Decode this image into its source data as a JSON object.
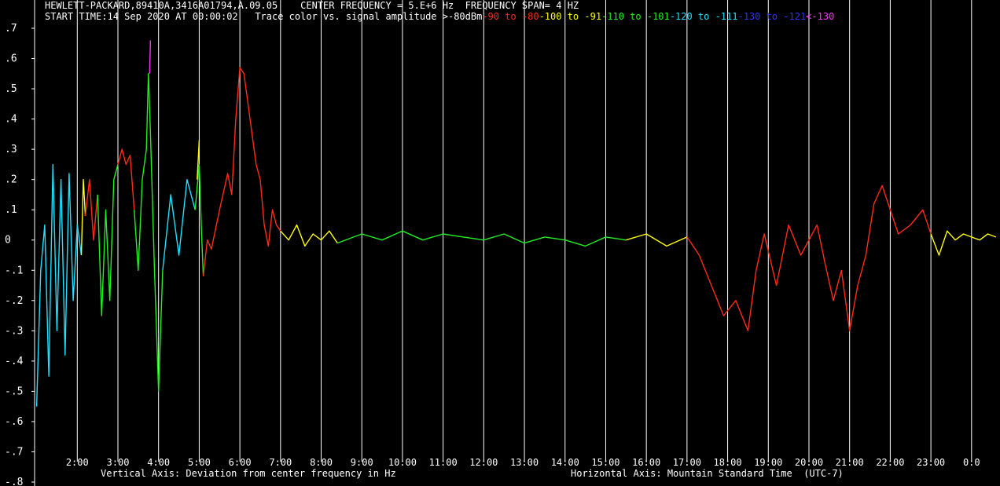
{
  "header": {
    "instrument": "HEWLETT-PACKARD,89410A,3416A01794,A.09.05",
    "center_frequency": "CENTER FREQUENCY = 5.E+6 Hz",
    "frequency_span": "FREQUENCY SPAN= 4 HZ",
    "start_time": "START TIME:14 Sep 2020 AT 00:00:02",
    "trace_color_label": "Trace color vs. signal amplitude"
  },
  "legend": [
    {
      "text": ">-80dBm",
      "color": "#ffffff"
    },
    {
      "text": "-90 to -80",
      "color": "#ff2a1a"
    },
    {
      "text": "-100 to -91",
      "color": "#ffff00"
    },
    {
      "text": "-110 to -101",
      "color": "#22ee22"
    },
    {
      "text": "-120 to -111",
      "color": "#20e0ff"
    },
    {
      "text": "-130 to -121",
      "color": "#3030ff"
    },
    {
      "text": "<-130",
      "color": "#ff30ff"
    }
  ],
  "colors": {
    "background": "#000000",
    "axis": "#ffffff",
    "grid": "#ffffff",
    "red": "#ff2a1a",
    "yellow": "#ffff00",
    "green": "#22ee22",
    "cyan": "#20e0ff",
    "blue": "#3030ff",
    "magenta": "#ff30ff"
  },
  "chart_data": {
    "type": "line",
    "xlabel": "Horizontal Axis: Mountain Standard Time  (UTC-7)",
    "ylabel": "Vertical Axis: Deviation from center frequency in Hz",
    "x_unit": "hours",
    "xlim": [
      0.95,
      24.7
    ],
    "ylim": [
      -0.8,
      0.7
    ],
    "x_ticks": [
      2,
      3,
      4,
      5,
      6,
      7,
      8,
      9,
      10,
      11,
      12,
      13,
      14,
      15,
      16,
      17,
      18,
      19,
      20,
      21,
      22,
      23,
      24
    ],
    "x_tick_labels": [
      "2:00",
      "3:00",
      "4:00",
      "5:00",
      "6:00",
      "7:00",
      "8:00",
      "9:00",
      "10:00",
      "11:00",
      "12:00",
      "13:00",
      "14:00",
      "15:00",
      "16:00",
      "17:00",
      "18:00",
      "19:00",
      "20:00",
      "21:00",
      "22:00",
      "23:00",
      "0:0"
    ],
    "y_ticks": [
      0.7,
      0.6,
      0.5,
      0.4,
      0.3,
      0.2,
      0.1,
      0,
      -0.1,
      -0.2,
      -0.3,
      -0.4,
      -0.5,
      -0.6,
      -0.7,
      -0.8
    ],
    "y_tick_labels": [
      ".7",
      ".6",
      ".5",
      ".4",
      ".3",
      ".2",
      ".1",
      "0",
      "-.1",
      "-.2",
      "-.3",
      "-.4",
      "-.5",
      "-.6",
      "-.7",
      "-.8"
    ],
    "grid": "vertical lines at each hour",
    "series": [
      {
        "color": "cyan",
        "x": [
          1.0,
          1.1,
          1.2,
          1.3,
          1.4,
          1.5,
          1.6,
          1.7,
          1.8,
          1.9,
          2.0,
          2.1
        ],
        "y": [
          -0.55,
          -0.1,
          0.05,
          -0.45,
          0.25,
          -0.3,
          0.2,
          -0.38,
          0.22,
          -0.2,
          0.05,
          -0.05
        ]
      },
      {
        "color": "yellow",
        "x": [
          2.1,
          2.15,
          2.2
        ],
        "y": [
          -0.05,
          0.2,
          0.08
        ]
      },
      {
        "color": "red",
        "x": [
          2.2,
          2.3,
          2.4,
          2.5
        ],
        "y": [
          0.08,
          0.2,
          0.0,
          0.15
        ]
      },
      {
        "color": "green",
        "x": [
          2.5,
          2.6,
          2.7,
          2.8,
          2.9,
          3.0
        ],
        "y": [
          0.15,
          -0.25,
          0.1,
          -0.2,
          0.2,
          0.25
        ]
      },
      {
        "color": "red",
        "x": [
          3.0,
          3.1,
          3.2,
          3.3,
          3.4
        ],
        "y": [
          0.25,
          0.3,
          0.25,
          0.28,
          0.1
        ]
      },
      {
        "color": "green",
        "x": [
          3.4,
          3.5,
          3.6,
          3.7,
          3.75,
          3.8,
          3.9,
          4.0,
          4.1
        ],
        "y": [
          0.1,
          -0.1,
          0.2,
          0.3,
          0.55,
          0.35,
          -0.1,
          -0.5,
          -0.1
        ]
      },
      {
        "color": "magenta",
        "x": [
          3.78,
          3.8
        ],
        "y": [
          0.55,
          0.66
        ]
      },
      {
        "color": "cyan",
        "x": [
          4.1,
          4.3,
          4.5,
          4.7,
          4.9
        ],
        "y": [
          -0.1,
          0.15,
          -0.05,
          0.2,
          0.1
        ]
      },
      {
        "color": "green",
        "x": [
          4.9,
          5.0,
          5.05,
          5.1
        ],
        "y": [
          0.1,
          0.25,
          0.05,
          -0.12
        ]
      },
      {
        "color": "yellow",
        "x": [
          4.95,
          5.0
        ],
        "y": [
          0.2,
          0.33
        ]
      },
      {
        "color": "red",
        "x": [
          5.1,
          5.2,
          5.3,
          5.5,
          5.7,
          5.8,
          5.9,
          6.0,
          6.1,
          6.2,
          6.3,
          6.4,
          6.5,
          6.6,
          6.7,
          6.8,
          6.9,
          7.0
        ],
        "y": [
          -0.12,
          0.0,
          -0.03,
          0.1,
          0.22,
          0.15,
          0.4,
          0.57,
          0.55,
          0.45,
          0.35,
          0.25,
          0.2,
          0.05,
          -0.02,
          0.1,
          0.05,
          0.03
        ]
      },
      {
        "color": "yellow",
        "x": [
          7.0,
          7.2,
          7.4,
          7.6,
          7.8,
          8.0,
          8.2,
          8.4
        ],
        "y": [
          0.03,
          0.0,
          0.05,
          -0.02,
          0.02,
          0.0,
          0.03,
          -0.01
        ]
      },
      {
        "color": "green",
        "x": [
          8.4,
          9.0,
          9.5,
          10.0,
          10.5,
          11.0,
          11.5,
          12.0,
          12.5,
          13.0,
          13.5,
          14.0,
          14.5,
          15.0,
          15.5
        ],
        "y": [
          -0.01,
          0.02,
          0.0,
          0.03,
          0.0,
          0.02,
          0.01,
          0.0,
          0.02,
          -0.01,
          0.01,
          0.0,
          -0.02,
          0.01,
          0.0
        ]
      },
      {
        "color": "yellow",
        "x": [
          15.5,
          16.0,
          16.5,
          17.0
        ],
        "y": [
          0.0,
          0.02,
          -0.02,
          0.01
        ]
      },
      {
        "color": "red",
        "x": [
          17.0,
          17.3,
          17.6,
          17.9,
          18.2,
          18.5,
          18.7,
          18.9,
          19.2,
          19.5,
          19.8,
          20.0,
          20.2,
          20.4,
          20.6,
          20.8,
          21.0,
          21.2,
          21.4,
          21.6,
          21.8,
          22.0,
          22.2,
          22.5,
          22.8,
          23.0
        ],
        "y": [
          0.01,
          -0.05,
          -0.15,
          -0.25,
          -0.2,
          -0.3,
          -0.1,
          0.02,
          -0.15,
          0.05,
          -0.05,
          0.0,
          0.05,
          -0.08,
          -0.2,
          -0.1,
          -0.3,
          -0.15,
          -0.05,
          0.12,
          0.18,
          0.1,
          0.02,
          0.05,
          0.1,
          0.02
        ]
      },
      {
        "color": "yellow",
        "x": [
          23.0,
          23.2,
          23.4,
          23.6,
          23.8,
          24.0,
          24.2,
          24.4,
          24.6
        ],
        "y": [
          0.02,
          -0.05,
          0.03,
          0.0,
          0.02,
          0.01,
          0.0,
          0.02,
          0.01
        ]
      }
    ]
  }
}
